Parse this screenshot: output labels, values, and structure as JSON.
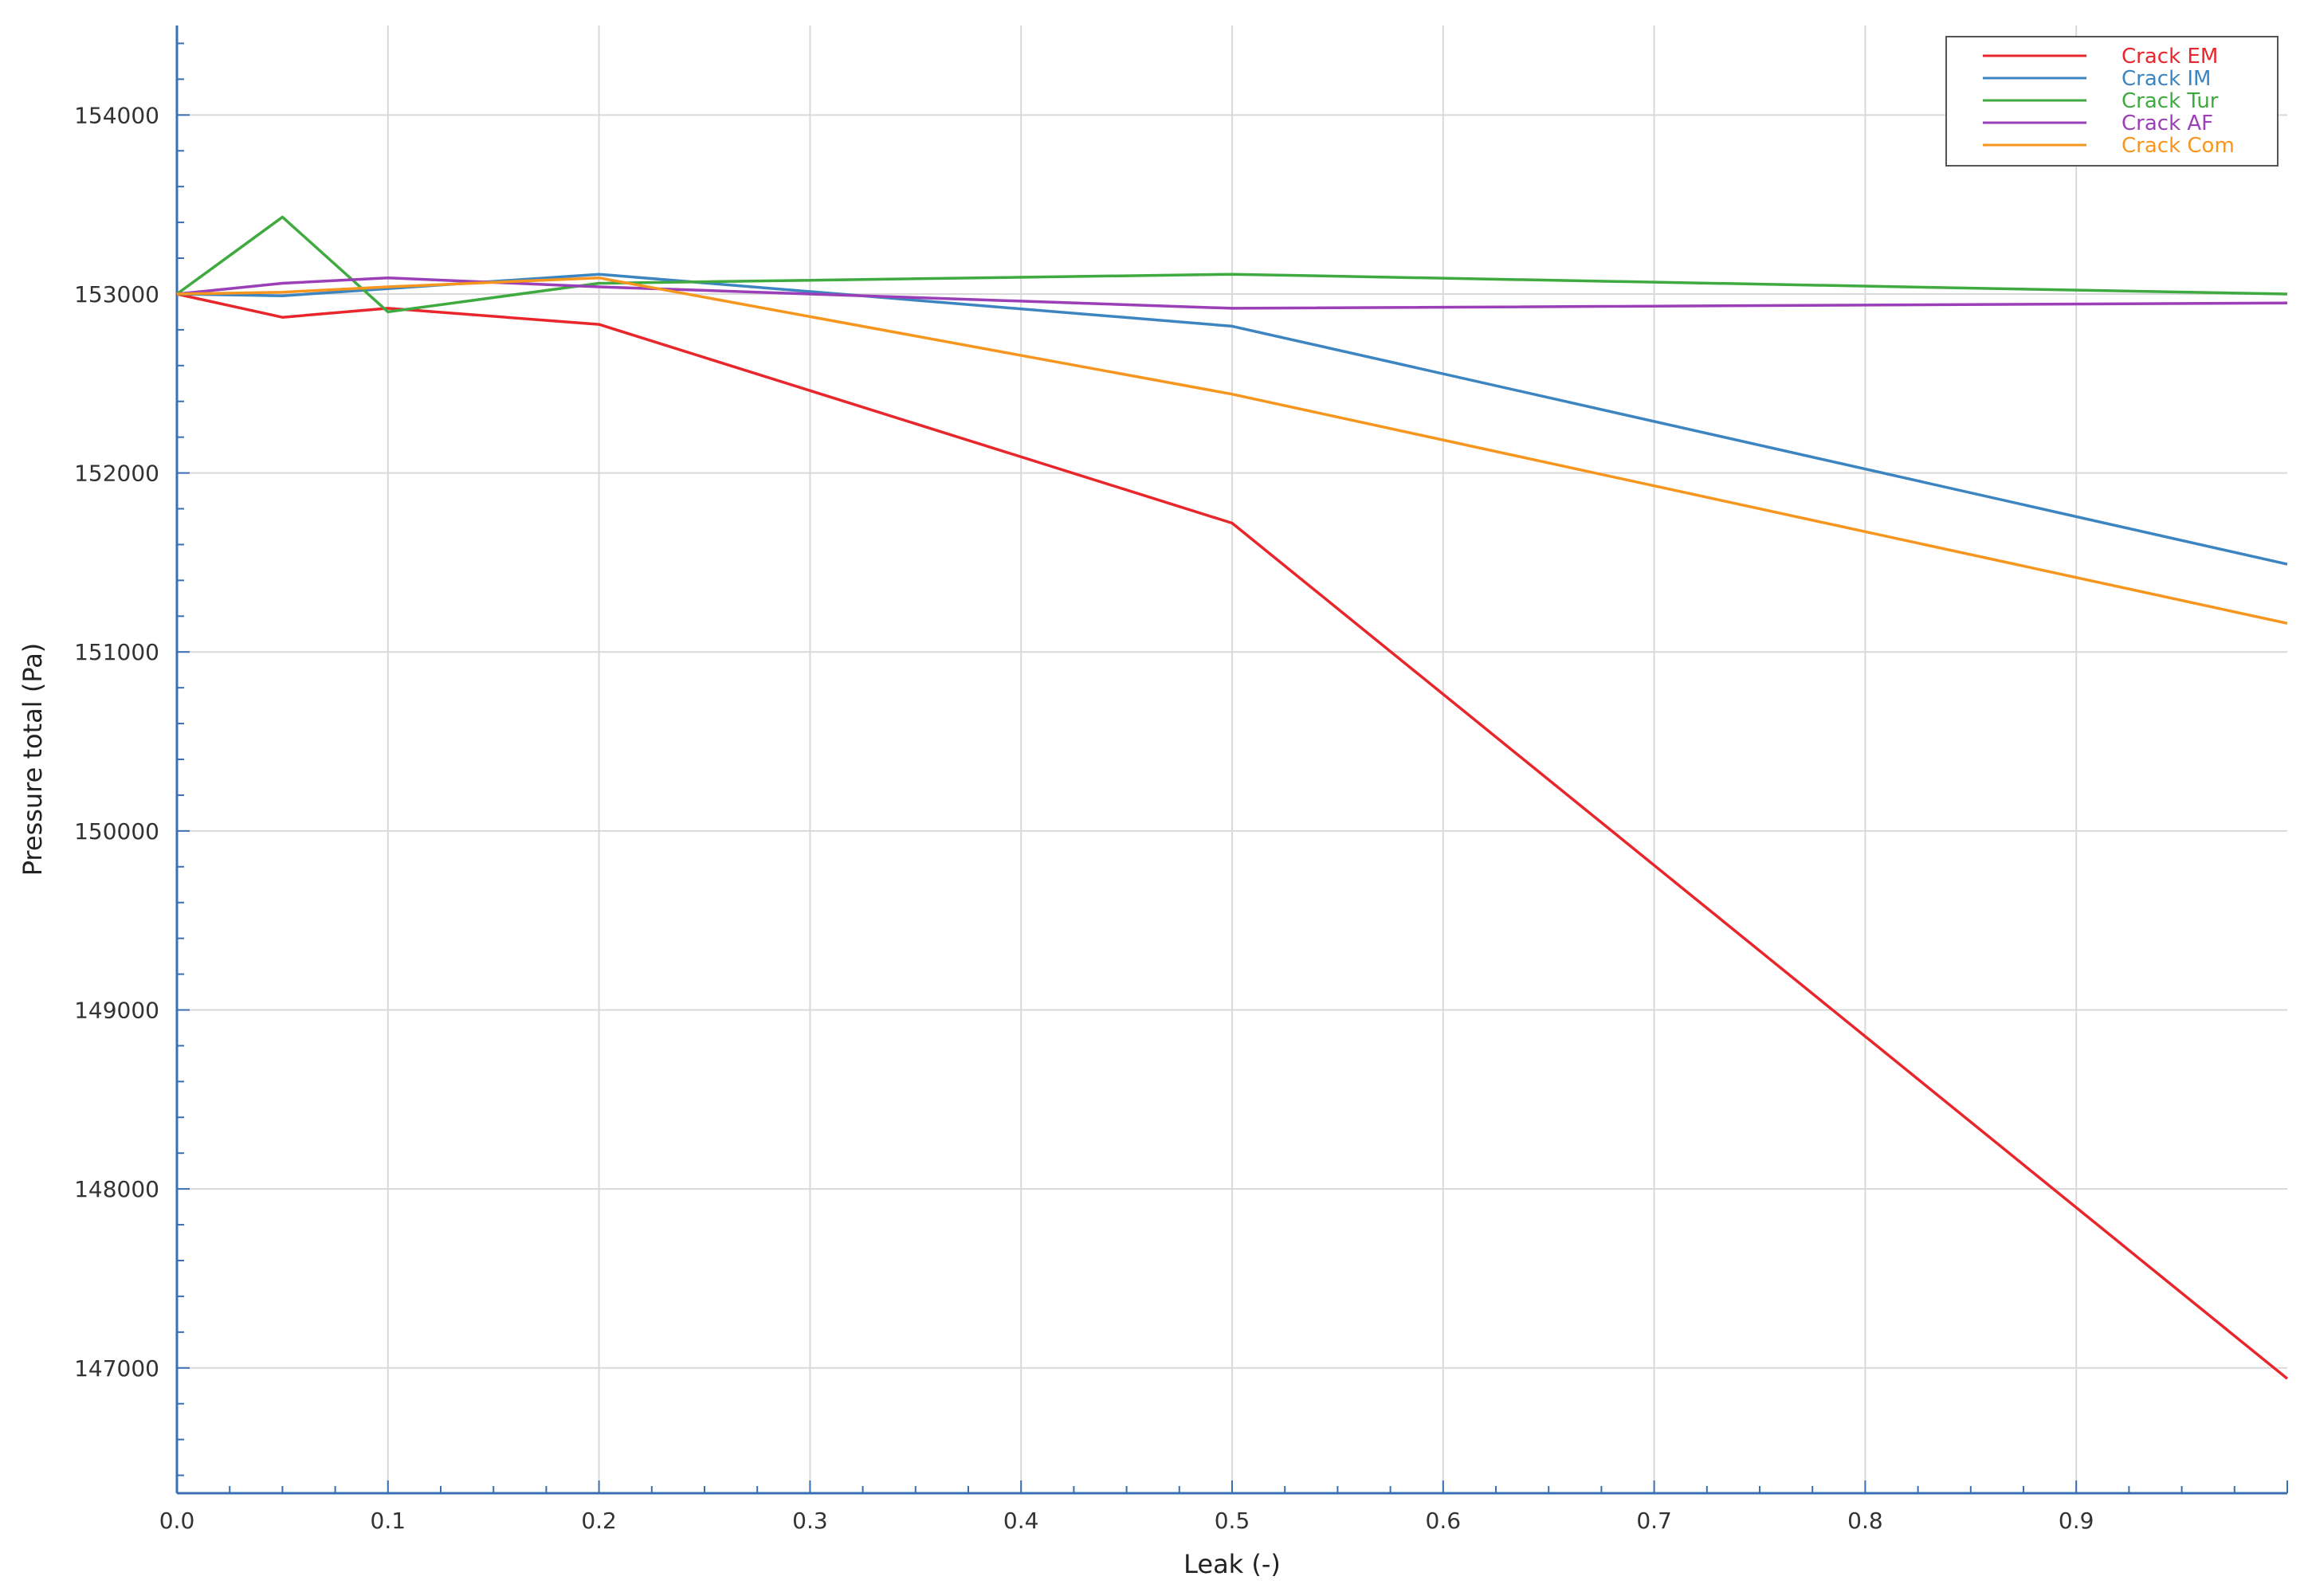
{
  "chart_data": {
    "type": "line",
    "xlabel": "Leak (-)",
    "ylabel": "Pressure total (Pa)",
    "xlim": [
      0.0,
      1.0
    ],
    "ylim": [
      146300,
      154500
    ],
    "x_ticks": [
      0.0,
      0.1,
      0.2,
      0.3,
      0.4,
      0.5,
      0.6,
      0.7,
      0.8,
      0.9
    ],
    "x_tick_labels": [
      "0.0",
      "0.1",
      "0.2",
      "0.3",
      "0.4",
      "0.5",
      "0.6",
      "0.7",
      "0.8",
      "0.9"
    ],
    "y_ticks": [
      147000,
      148000,
      149000,
      150000,
      151000,
      152000,
      153000,
      154000
    ],
    "y_tick_labels": [
      "147000",
      "148000",
      "149000",
      "150000",
      "151000",
      "152000",
      "153000",
      "154000"
    ],
    "grid": true,
    "legend_position": "top-right",
    "series": [
      {
        "name": "Crack EM",
        "color": "#e8262b",
        "points": [
          [
            0.0,
            153000
          ],
          [
            0.05,
            152870
          ],
          [
            0.1,
            152920
          ],
          [
            0.2,
            152830
          ],
          [
            0.5,
            151720
          ],
          [
            1.0,
            146940
          ]
        ]
      },
      {
        "name": "Crack IM",
        "color": "#3c85c0",
        "points": [
          [
            0.0,
            153000
          ],
          [
            0.05,
            152990
          ],
          [
            0.1,
            153030
          ],
          [
            0.2,
            153110
          ],
          [
            0.5,
            152820
          ],
          [
            1.0,
            151490
          ]
        ]
      },
      {
        "name": "Crack Tur",
        "color": "#3faa3f",
        "points": [
          [
            0.0,
            153000
          ],
          [
            0.05,
            153430
          ],
          [
            0.1,
            152900
          ],
          [
            0.2,
            153060
          ],
          [
            0.5,
            153110
          ],
          [
            1.0,
            153000
          ]
        ]
      },
      {
        "name": "Crack AF",
        "color": "#9b3fb8",
        "points": [
          [
            0.0,
            153000
          ],
          [
            0.05,
            153060
          ],
          [
            0.1,
            153090
          ],
          [
            0.2,
            153040
          ],
          [
            0.5,
            152920
          ],
          [
            1.0,
            152950
          ]
        ]
      },
      {
        "name": "Crack Com",
        "color": "#f7961e",
        "points": [
          [
            0.0,
            153000
          ],
          [
            0.05,
            153010
          ],
          [
            0.1,
            153040
          ],
          [
            0.2,
            153090
          ],
          [
            0.5,
            152440
          ],
          [
            1.0,
            151160
          ]
        ]
      }
    ]
  }
}
